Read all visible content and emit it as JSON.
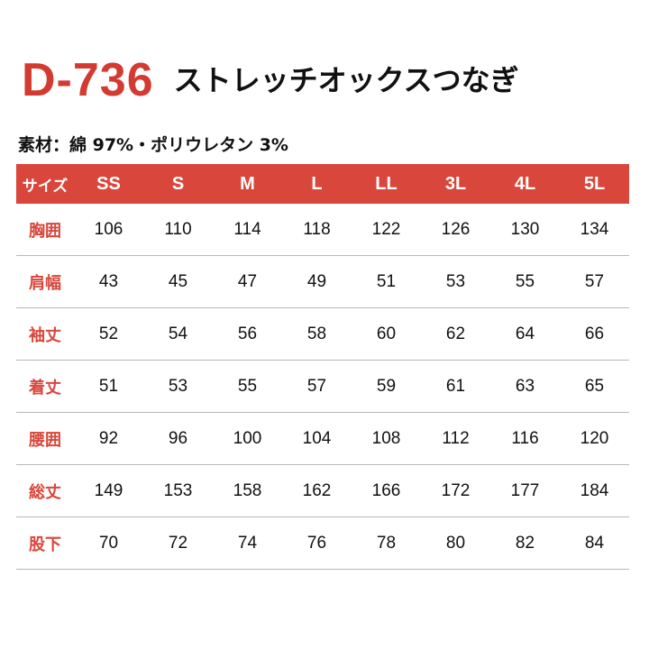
{
  "header": {
    "code": "D-736",
    "name": "ストレッチオックスつなぎ"
  },
  "material": "素材：綿 97%・ポリウレタン 3%",
  "table": {
    "corner_label": "サイズ",
    "sizes": [
      "SS",
      "S",
      "M",
      "L",
      "LL",
      "3L",
      "4L",
      "5L"
    ],
    "rows": [
      {
        "label": "胸囲",
        "values": [
          "106",
          "110",
          "114",
          "118",
          "122",
          "126",
          "130",
          "134"
        ]
      },
      {
        "label": "肩幅",
        "values": [
          "43",
          "45",
          "47",
          "49",
          "51",
          "53",
          "55",
          "57"
        ]
      },
      {
        "label": "袖丈",
        "values": [
          "52",
          "54",
          "56",
          "58",
          "60",
          "62",
          "64",
          "66"
        ]
      },
      {
        "label": "着丈",
        "values": [
          "51",
          "53",
          "55",
          "57",
          "59",
          "61",
          "63",
          "65"
        ]
      },
      {
        "label": "腰囲",
        "values": [
          "92",
          "96",
          "100",
          "104",
          "108",
          "112",
          "116",
          "120"
        ]
      },
      {
        "label": "総丈",
        "values": [
          "149",
          "153",
          "158",
          "162",
          "166",
          "172",
          "177",
          "184"
        ]
      },
      {
        "label": "股下",
        "values": [
          "70",
          "72",
          "74",
          "76",
          "78",
          "80",
          "82",
          "84"
        ]
      }
    ]
  },
  "colors": {
    "accent": "#d9463b",
    "code": "#d33a32"
  }
}
